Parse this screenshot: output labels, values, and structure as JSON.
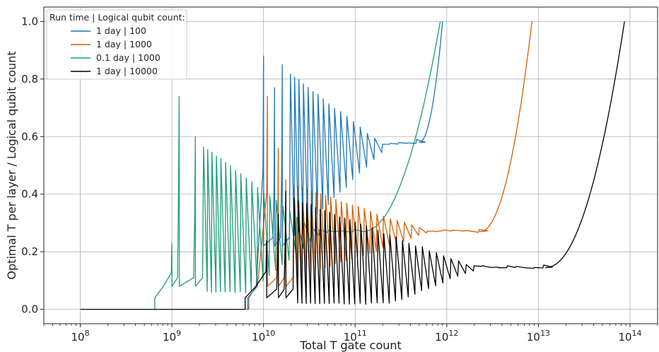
{
  "chart_data": {
    "type": "line",
    "title": "",
    "xlabel": "Total T gate count",
    "ylabel": "Optimal T per layer / Logical qubit count",
    "xscale": "log",
    "xlim": [
      40000000.0,
      200000000000000.0
    ],
    "ylim": [
      -0.05,
      1.05
    ],
    "grid": true,
    "x_ticks": [
      {
        "value": 100000000.0,
        "base": "10",
        "exp": "8"
      },
      {
        "value": 1000000000.0,
        "base": "10",
        "exp": "9"
      },
      {
        "value": 10000000000.0,
        "base": "10",
        "exp": "10"
      },
      {
        "value": 100000000000.0,
        "base": "10",
        "exp": "11"
      },
      {
        "value": 1000000000000.0,
        "base": "10",
        "exp": "12"
      },
      {
        "value": 10000000000000.0,
        "base": "10",
        "exp": "13"
      },
      {
        "value": 100000000000000.0,
        "base": "10",
        "exp": "14"
      }
    ],
    "y_ticks": [
      {
        "value": 0.0,
        "label": "0.0"
      },
      {
        "value": 0.2,
        "label": "0.2"
      },
      {
        "value": 0.4,
        "label": "0.4"
      },
      {
        "value": 0.6,
        "label": "0.6"
      },
      {
        "value": 0.8,
        "label": "0.8"
      },
      {
        "value": 1.0,
        "label": "1.0"
      }
    ],
    "legend": {
      "title": "Run time | Logical qubit count:",
      "position": "top-left"
    },
    "series": [
      {
        "name": "1 day | 100",
        "color": "#1f77b4",
        "x0": 6500000000.0,
        "onset": 6900000000.0,
        "peaks": [
          [
            10000000000.0,
            0.88
          ],
          [
            13200000000.0,
            0.77
          ],
          [
            16000000000.0,
            0.85
          ]
        ],
        "decay_to": 0.2,
        "mid_value": 0.55,
        "plateau": 0.58,
        "plateau_end": 500000000000.0,
        "end": [
          900000000000.0,
          1.0
        ]
      },
      {
        "name": "1 day | 1000",
        "color": "#d95f02",
        "x0": 6500000000.0,
        "onset": 6700000000.0,
        "peaks": [
          [
            11000000000.0,
            0.74
          ],
          [
            14500000000.0,
            0.56
          ],
          [
            17500000000.0,
            0.45
          ]
        ],
        "decay_to": 0.06,
        "mid_value": 0.28,
        "plateau": 0.27,
        "plateau_end": 2300000000000.0,
        "end": [
          8500000000000.0,
          1.0
        ]
      },
      {
        "name": "0.1 day | 1000",
        "color": "#1b9e77",
        "x0": 650000000.0,
        "onset": 650000000.0,
        "peaks": [
          [
            1000000000.0,
            0.23
          ],
          [
            1200000000.0,
            0.74
          ],
          [
            1800000000.0,
            0.6
          ]
        ],
        "decay_to": 0.06,
        "mid_value": 0.27,
        "plateau": 0.27,
        "plateau_end": 120000000000.0,
        "end": [
          850000000000.0,
          1.0
        ]
      },
      {
        "name": "1 day | 10000",
        "color": "#000000",
        "x0": 100000000.0,
        "onset": 6300000000.0,
        "peaks": [
          [
            10800000000.0,
            0.24
          ],
          [
            14500000000.0,
            0.33
          ],
          [
            17500000000.0,
            0.41
          ]
        ],
        "decay_to": 0.02,
        "mid_value": 0.15,
        "plateau": 0.145,
        "plateau_end": 12000000000000.0,
        "end": [
          87000000000000.0,
          1.0
        ]
      }
    ]
  }
}
